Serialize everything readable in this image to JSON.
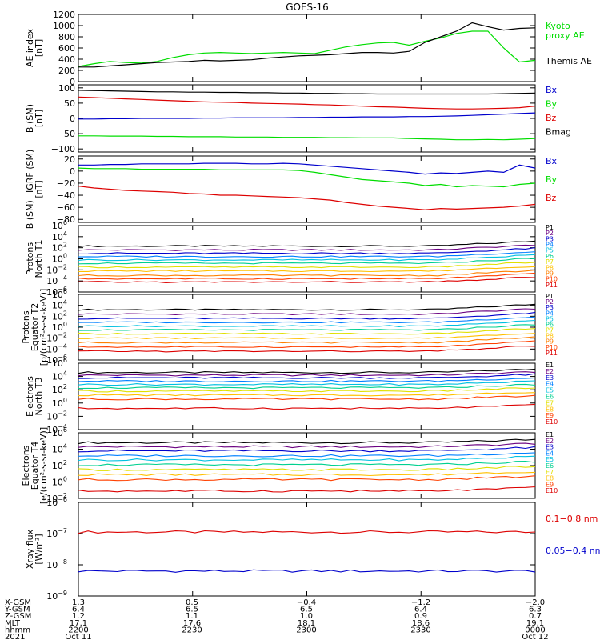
{
  "title": "GOES-16",
  "colors": {
    "black": "#000000",
    "green": "#00dd00",
    "blue": "#0000cc",
    "red": "#dd0000",
    "P1": "#000000",
    "P2": "#6a0080",
    "P3": "#0000cc",
    "P4": "#0080ff",
    "P5": "#00c0e0",
    "P6": "#00d090",
    "P7": "#e0e000",
    "P8": "#ffc000",
    "P9": "#ff8000",
    "P10": "#ff4000",
    "P11": "#dd0000"
  },
  "chart_data": [
    {
      "type": "line",
      "ylabel": [
        "AE index",
        "[nT]"
      ],
      "ylim": [
        0,
        1200
      ],
      "yticks": [
        "0",
        "200",
        "400",
        "600",
        "800",
        "1000",
        "1200"
      ],
      "ytick_values": [
        0,
        200,
        400,
        600,
        800,
        1000,
        1200
      ],
      "legend": [
        {
          "name": "Kyoto",
          "color": "green"
        },
        {
          "name": "proxy AE",
          "color": "green"
        },
        {
          "name": "Themis AE",
          "color": "black"
        }
      ],
      "series": [
        {
          "name": "Kyoto proxy AE",
          "color": "green",
          "values": [
            270,
            320,
            360,
            340,
            330,
            360,
            430,
            480,
            510,
            520,
            510,
            500,
            510,
            520,
            510,
            500,
            560,
            620,
            660,
            690,
            700,
            650,
            720,
            780,
            860,
            900,
            900,
            600,
            350,
            380
          ]
        },
        {
          "name": "Themis AE",
          "color": "black",
          "values": [
            260,
            260,
            280,
            300,
            320,
            340,
            350,
            360,
            380,
            370,
            380,
            390,
            420,
            440,
            460,
            470,
            480,
            500,
            520,
            520,
            510,
            540,
            700,
            800,
            900,
            1050,
            980,
            920,
            950,
            960
          ]
        }
      ]
    },
    {
      "type": "line",
      "ylabel": [
        "B (SM)",
        "[nT]"
      ],
      "ylim": [
        -110,
        110
      ],
      "yticks": [
        "−100",
        "−50",
        "0",
        "50",
        "100"
      ],
      "ytick_values": [
        -100,
        -50,
        0,
        50,
        100
      ],
      "legend": [
        {
          "name": "Bx",
          "color": "blue"
        },
        {
          "name": "By",
          "color": "green"
        },
        {
          "name": "Bz",
          "color": "red"
        },
        {
          "name": "Bmag",
          "color": "black"
        }
      ],
      "series": [
        {
          "name": "Bx",
          "color": "blue",
          "values": [
            -2,
            -2,
            -1,
            -1,
            0,
            0,
            0,
            0,
            1,
            1,
            2,
            2,
            2,
            2,
            3,
            3,
            4,
            4,
            5,
            5,
            5,
            6,
            6,
            7,
            8,
            10,
            12,
            14,
            16,
            18
          ]
        },
        {
          "name": "By",
          "color": "green",
          "values": [
            -57,
            -57,
            -58,
            -58,
            -58,
            -59,
            -59,
            -60,
            -60,
            -60,
            -61,
            -61,
            -61,
            -62,
            -62,
            -62,
            -63,
            -63,
            -64,
            -64,
            -64,
            -66,
            -67,
            -68,
            -70,
            -70,
            -69,
            -70,
            -68,
            -66
          ]
        },
        {
          "name": "Bz",
          "color": "red",
          "values": [
            70,
            68,
            66,
            64,
            62,
            60,
            58,
            56,
            54,
            53,
            52,
            50,
            49,
            48,
            47,
            45,
            44,
            42,
            40,
            38,
            37,
            35,
            33,
            32,
            31,
            31,
            32,
            33,
            35,
            40
          ]
        },
        {
          "name": "Bmag",
          "color": "black",
          "values": [
            92,
            91,
            90,
            89,
            88,
            87,
            87,
            86,
            86,
            85,
            85,
            84,
            84,
            83,
            83,
            82,
            82,
            81,
            81,
            80,
            80,
            80,
            80,
            80,
            80,
            80,
            80,
            81,
            82,
            83
          ]
        }
      ]
    },
    {
      "type": "line",
      "ylabel": [
        "B (SM)−IGRF (SM)",
        "[nT]"
      ],
      "ylim": [
        -85,
        25
      ],
      "yticks": [
        "−80",
        "−60",
        "−40",
        "−20",
        "0",
        "20"
      ],
      "ytick_values": [
        -80,
        -60,
        -40,
        -20,
        0,
        20
      ],
      "legend": [
        {
          "name": "Bx",
          "color": "blue"
        },
        {
          "name": "By",
          "color": "green"
        },
        {
          "name": "Bz",
          "color": "red"
        }
      ],
      "series": [
        {
          "name": "Bx",
          "color": "blue",
          "values": [
            10,
            10,
            11,
            11,
            12,
            12,
            12,
            12,
            13,
            13,
            13,
            12,
            12,
            13,
            12,
            10,
            8,
            6,
            4,
            2,
            0,
            -2,
            -5,
            -3,
            -4,
            -2,
            0,
            -2,
            10,
            5
          ]
        },
        {
          "name": "By",
          "color": "green",
          "values": [
            5,
            4,
            4,
            4,
            3,
            3,
            3,
            3,
            3,
            2,
            2,
            2,
            2,
            2,
            1,
            -2,
            -6,
            -10,
            -14,
            -16,
            -18,
            -20,
            -24,
            -22,
            -26,
            -24,
            -25,
            -26,
            -22,
            -20
          ]
        },
        {
          "name": "Bz",
          "color": "red",
          "values": [
            -25,
            -28,
            -30,
            -32,
            -33,
            -34,
            -35,
            -37,
            -38,
            -40,
            -40,
            -41,
            -42,
            -43,
            -44,
            -46,
            -48,
            -52,
            -55,
            -58,
            -60,
            -62,
            -64,
            -62,
            -63,
            -62,
            -61,
            -60,
            -58,
            -55
          ]
        }
      ]
    },
    {
      "type": "line",
      "log": true,
      "ylabel": [
        "Protons",
        "North T1"
      ],
      "ylim_exp": [
        -6,
        6
      ],
      "yticks_exp": [
        -6,
        -4,
        -2,
        0,
        2,
        4,
        6
      ],
      "yticks": [
        "10",
        "10",
        "10",
        "10",
        "10",
        "10",
        "10"
      ],
      "yticks_sup": [
        "−6",
        "−4",
        "−2",
        "0",
        "2",
        "4",
        "6"
      ],
      "legend": [
        {
          "name": "P1",
          "color": "P1"
        },
        {
          "name": "P2",
          "color": "P2"
        },
        {
          "name": "P3",
          "color": "P3"
        },
        {
          "name": "P4",
          "color": "P4"
        },
        {
          "name": "P5",
          "color": "P5"
        },
        {
          "name": "P6",
          "color": "P6"
        },
        {
          "name": "P7",
          "color": "P7"
        },
        {
          "name": "P8",
          "color": "P8"
        },
        {
          "name": "P9",
          "color": "P9"
        },
        {
          "name": "P10",
          "color": "P10"
        },
        {
          "name": "P11",
          "color": "P11"
        }
      ],
      "series_logbase": [
        2.3,
        1.6,
        1.0,
        0.4,
        -0.2,
        -0.8,
        -1.5,
        -2.2,
        -3.0,
        -3.6,
        -4.2
      ],
      "rise": 0.9
    },
    {
      "type": "line",
      "log": true,
      "ylabel": [
        "Protons",
        "Equator T2",
        "[p/(cm²-s-sr-keV)]"
      ],
      "ylim_exp": [
        -6,
        6
      ],
      "yticks_exp": [
        -6,
        -4,
        -2,
        0,
        2,
        4,
        6
      ],
      "yticks": [
        "10",
        "10",
        "10",
        "10",
        "10",
        "10",
        "10"
      ],
      "yticks_sup": [
        "−6",
        "−4",
        "−2",
        "0",
        "2",
        "4",
        "6"
      ],
      "legend": [
        {
          "name": "P1",
          "color": "P1"
        },
        {
          "name": "P2",
          "color": "P2"
        },
        {
          "name": "P3",
          "color": "P3"
        },
        {
          "name": "P4",
          "color": "P4"
        },
        {
          "name": "P5",
          "color": "P5"
        },
        {
          "name": "P6",
          "color": "P6"
        },
        {
          "name": "P7",
          "color": "P7"
        },
        {
          "name": "P8",
          "color": "P8"
        },
        {
          "name": "P9",
          "color": "P9"
        },
        {
          "name": "P10",
          "color": "P10"
        },
        {
          "name": "P11",
          "color": "P11"
        }
      ],
      "series_logbase": [
        3.2,
        2.4,
        1.6,
        0.9,
        0.2,
        -0.5,
        -1.2,
        -2.0,
        -2.8,
        -3.6,
        -4.4
      ],
      "rise": 1.0
    },
    {
      "type": "line",
      "log": true,
      "ylabel": [
        "Electrons",
        "North T3"
      ],
      "ylim_exp": [
        -4,
        6
      ],
      "yticks_exp": [
        -4,
        -2,
        0,
        2,
        4,
        6
      ],
      "yticks": [
        "10",
        "10",
        "10",
        "10",
        "10",
        "10"
      ],
      "yticks_sup": [
        "−4",
        "−2",
        "0",
        "2",
        "4",
        "6"
      ],
      "legend": [
        {
          "name": "E1",
          "color": "P1"
        },
        {
          "name": "E2",
          "color": "P2"
        },
        {
          "name": "E3",
          "color": "P3"
        },
        {
          "name": "E4",
          "color": "P4"
        },
        {
          "name": "E5",
          "color": "P5"
        },
        {
          "name": "E6",
          "color": "P6"
        },
        {
          "name": "E7",
          "color": "P7"
        },
        {
          "name": "E8",
          "color": "P8"
        },
        {
          "name": "E9",
          "color": "P10"
        },
        {
          "name": "E10",
          "color": "P11"
        }
      ],
      "series_logbase": [
        4.6,
        4.2,
        3.8,
        3.3,
        2.8,
        2.3,
        1.8,
        1.2,
        0.6,
        -0.8
      ],
      "rise": 0.5
    },
    {
      "type": "line",
      "log": true,
      "ylabel": [
        "Electrons",
        "Equator T4",
        "[e/(cm²-s-sr-keV)]"
      ],
      "ylim_exp": [
        -2,
        6
      ],
      "yticks_exp": [
        -2,
        0,
        2,
        4,
        6
      ],
      "yticks": [
        "10",
        "10",
        "10",
        "10",
        "10"
      ],
      "yticks_sup": [
        "−2",
        "0",
        "2",
        "4",
        "6"
      ],
      "legend": [
        {
          "name": "E1",
          "color": "P1"
        },
        {
          "name": "E2",
          "color": "P2"
        },
        {
          "name": "E3",
          "color": "P3"
        },
        {
          "name": "E4",
          "color": "P4"
        },
        {
          "name": "E5",
          "color": "P5"
        },
        {
          "name": "E6",
          "color": "P6"
        },
        {
          "name": "E7",
          "color": "P7"
        },
        {
          "name": "E8",
          "color": "P8"
        },
        {
          "name": "E9",
          "color": "P10"
        },
        {
          "name": "E10",
          "color": "P11"
        }
      ],
      "series_logbase": [
        4.8,
        4.3,
        3.8,
        3.2,
        2.7,
        2.1,
        1.5,
        0.9,
        0.3,
        -1.1
      ],
      "rise": 0.4
    },
    {
      "type": "line",
      "log": true,
      "ylabel": [
        "Xray flux",
        "[W/m²]"
      ],
      "ylim_exp": [
        -9,
        -6
      ],
      "yticks_exp": [
        -9,
        -8,
        -7,
        -6
      ],
      "yticks": [
        "10",
        "10",
        "10",
        "10"
      ],
      "yticks_sup": [
        "−9",
        "−8",
        "−7",
        "−6"
      ],
      "legend": [
        {
          "name": "0.1−0.8 nm",
          "color": "red"
        },
        {
          "name": "0.05−0.4 nm",
          "color": "blue"
        }
      ],
      "series_logbase": [
        -6.95,
        -8.2
      ],
      "rise": 0.0
    }
  ],
  "x_axis": {
    "rows": [
      {
        "label": "X-GSM",
        "values": [
          "1.3",
          "0.5",
          "−0.4",
          "−1.2",
          "−2.0"
        ]
      },
      {
        "label": "Y-GSM",
        "values": [
          "6.4",
          "6.5",
          "6.5",
          "6.4",
          "6.3"
        ]
      },
      {
        "label": "Z-GSM",
        "values": [
          "1.2",
          "1.1",
          "1.0",
          "0.9",
          "0.7"
        ]
      },
      {
        "label": "MLT",
        "values": [
          "17.1",
          "17.6",
          "18.1",
          "18.6",
          "19.1"
        ]
      },
      {
        "label": "hhmm",
        "values": [
          "2200",
          "2230",
          "2300",
          "2330",
          "0000"
        ]
      },
      {
        "label": "2021",
        "values": [
          "Oct 11",
          "",
          "",
          "",
          "Oct 12"
        ]
      }
    ]
  }
}
